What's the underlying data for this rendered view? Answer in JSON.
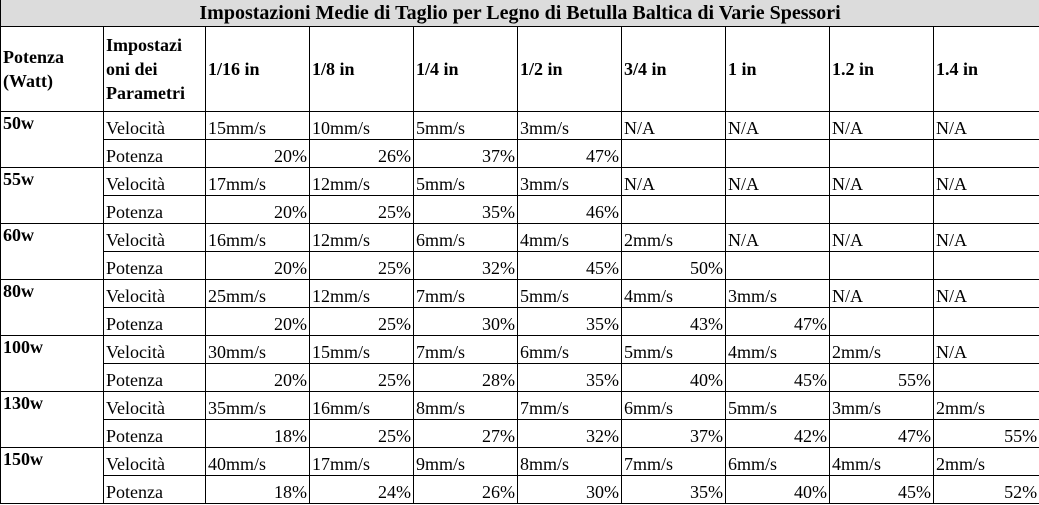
{
  "title": "Impostazioni Medie di Taglio per Legno di Betulla Baltica di Varie Spessori",
  "header": {
    "power_line1": "Potenza",
    "power_line2": "(Watt)",
    "params_line1": "Impostazi",
    "params_line2": "oni dei",
    "params_line3": "Parametri",
    "thicknesses": [
      "1/16 in",
      "1/8 in",
      "1/4 in",
      "1/2 in",
      "3/4 in",
      "1 in",
      "1.2 in",
      "1.4 in"
    ]
  },
  "labels": {
    "speed": "Velocità",
    "power": "Potenza"
  },
  "rows": [
    {
      "watt": "50w",
      "speeds": [
        "15mm/s",
        "10mm/s",
        "5mm/s",
        "3mm/s",
        "N/A",
        "N/A",
        "N/A",
        "N/A"
      ],
      "powers": [
        "20%",
        "26%",
        "37%",
        "47%",
        "",
        "",
        "",
        ""
      ]
    },
    {
      "watt": "55w",
      "speeds": [
        "17mm/s",
        "12mm/s",
        "5mm/s",
        "3mm/s",
        "N/A",
        "N/A",
        "N/A",
        "N/A"
      ],
      "powers": [
        "20%",
        "25%",
        "35%",
        "46%",
        "",
        "",
        "",
        ""
      ]
    },
    {
      "watt": "60w",
      "speeds": [
        "16mm/s",
        "12mm/s",
        "6mm/s",
        "4mm/s",
        "2mm/s",
        "N/A",
        "N/A",
        "N/A"
      ],
      "powers": [
        "20%",
        "25%",
        "32%",
        "45%",
        "50%",
        "",
        "",
        ""
      ]
    },
    {
      "watt": "80w",
      "speeds": [
        "25mm/s",
        "12mm/s",
        "7mm/s",
        "5mm/s",
        "4mm/s",
        "3mm/s",
        "N/A",
        "N/A"
      ],
      "powers": [
        "20%",
        "25%",
        "30%",
        "35%",
        "43%",
        "47%",
        "",
        ""
      ]
    },
    {
      "watt": "100w",
      "speeds": [
        "30mm/s",
        "15mm/s",
        "7mm/s",
        "6mm/s",
        "5mm/s",
        "4mm/s",
        "2mm/s",
        "N/A"
      ],
      "powers": [
        "20%",
        "25%",
        "28%",
        "35%",
        "40%",
        "45%",
        "55%",
        ""
      ]
    },
    {
      "watt": "130w",
      "speeds": [
        "35mm/s",
        "16mm/s",
        "8mm/s",
        "7mm/s",
        "6mm/s",
        "5mm/s",
        "3mm/s",
        "2mm/s"
      ],
      "powers": [
        "18%",
        "25%",
        "27%",
        "32%",
        "37%",
        "42%",
        "47%",
        "55%"
      ]
    },
    {
      "watt": "150w",
      "speeds": [
        "40mm/s",
        "17mm/s",
        "9mm/s",
        "8mm/s",
        "7mm/s",
        "6mm/s",
        "4mm/s",
        "2mm/s"
      ],
      "powers": [
        "18%",
        "24%",
        "26%",
        "30%",
        "35%",
        "40%",
        "45%",
        "52%"
      ]
    }
  ]
}
